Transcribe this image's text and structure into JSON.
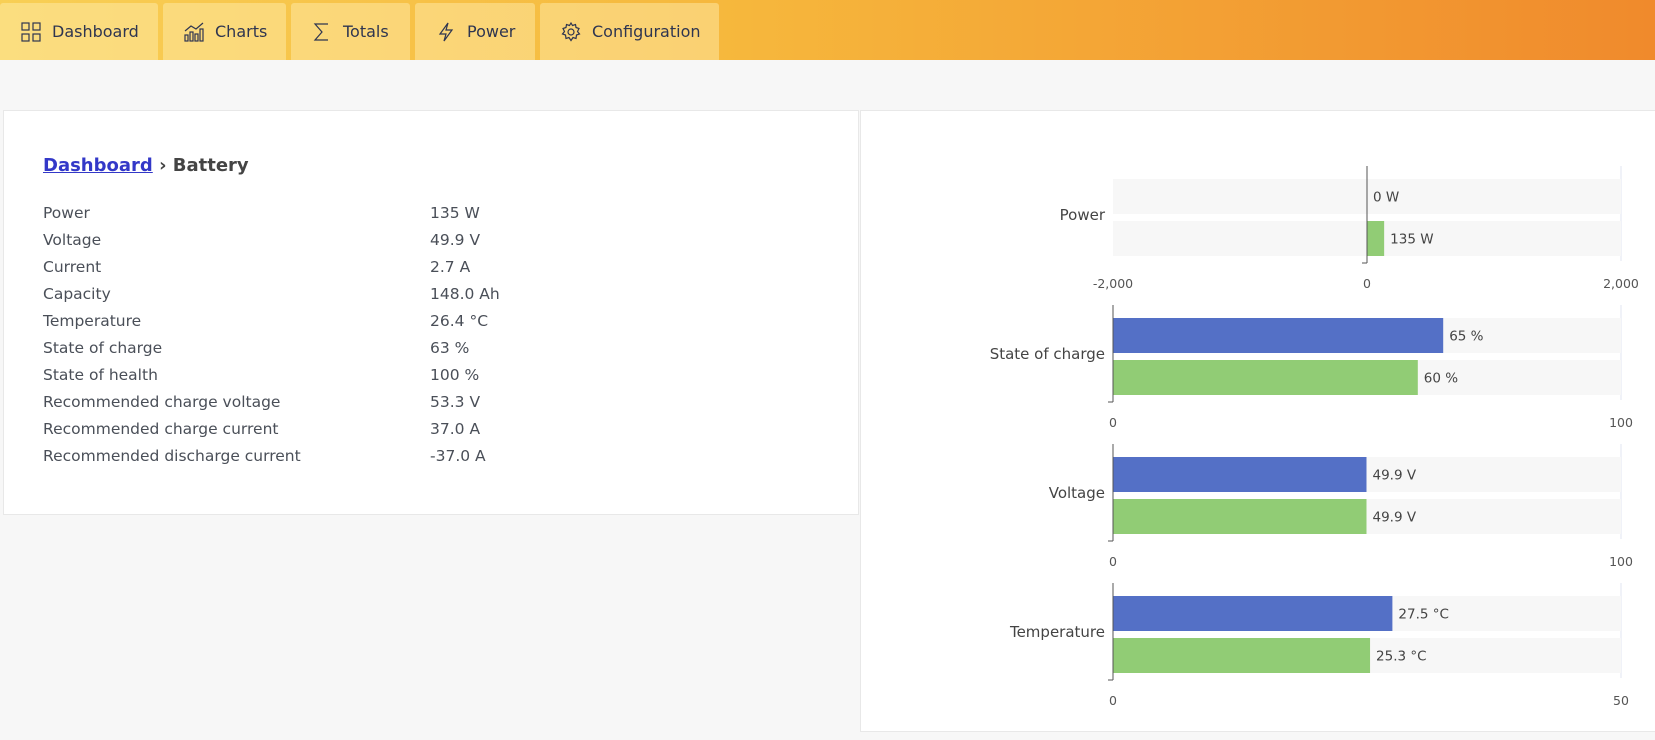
{
  "nav": {
    "tabs": [
      {
        "label": "Dashboard",
        "icon": "grid-icon"
      },
      {
        "label": "Charts",
        "icon": "chart-icon"
      },
      {
        "label": "Totals",
        "icon": "sigma-icon"
      },
      {
        "label": "Power",
        "icon": "lightning-icon"
      },
      {
        "label": "Configuration",
        "icon": "gear-icon"
      }
    ]
  },
  "breadcrumb": {
    "link": "Dashboard",
    "separator": "›",
    "current": "Battery"
  },
  "details": [
    {
      "label": "Power",
      "value": "135 W"
    },
    {
      "label": "Voltage",
      "value": "49.9 V"
    },
    {
      "label": "Current",
      "value": "2.7 A"
    },
    {
      "label": "Capacity",
      "value": "148.0 Ah"
    },
    {
      "label": "Temperature",
      "value": "26.4 °C"
    },
    {
      "label": "State of charge",
      "value": "63 %"
    },
    {
      "label": "State of health",
      "value": "100 %"
    },
    {
      "label": "Recommended charge voltage",
      "value": "53.3 V"
    },
    {
      "label": "Recommended charge current",
      "value": "37.0 A"
    },
    {
      "label": "Recommended discharge current",
      "value": "-37.0 A"
    }
  ],
  "colors": {
    "blue": "#5470c6",
    "green": "#91cc75",
    "link": "#3338c8"
  },
  "chart_data": [
    {
      "type": "bar",
      "category": "Power",
      "xlim": [
        -2000,
        2000
      ],
      "ticks": [
        "-2,000",
        "0",
        "2,000"
      ],
      "values": [
        0,
        135
      ],
      "labels": [
        "0 W",
        "135 W"
      ],
      "colors": [
        "#5470c6",
        "#91cc75"
      ]
    },
    {
      "type": "bar",
      "category": "State of charge",
      "xlim": [
        0,
        100
      ],
      "ticks": [
        "0",
        "100"
      ],
      "values": [
        65,
        60
      ],
      "labels": [
        "65 %",
        "60 %"
      ],
      "colors": [
        "#5470c6",
        "#91cc75"
      ]
    },
    {
      "type": "bar",
      "category": "Voltage",
      "xlim": [
        0,
        100
      ],
      "ticks": [
        "0",
        "100"
      ],
      "values": [
        49.9,
        49.9
      ],
      "labels": [
        "49.9 V",
        "49.9 V"
      ],
      "colors": [
        "#5470c6",
        "#91cc75"
      ]
    },
    {
      "type": "bar",
      "category": "Temperature",
      "xlim": [
        0,
        50
      ],
      "ticks": [
        "0",
        "50"
      ],
      "values": [
        27.5,
        25.3
      ],
      "labels": [
        "27.5 °C",
        "25.3 °C"
      ],
      "colors": [
        "#5470c6",
        "#91cc75"
      ]
    }
  ]
}
